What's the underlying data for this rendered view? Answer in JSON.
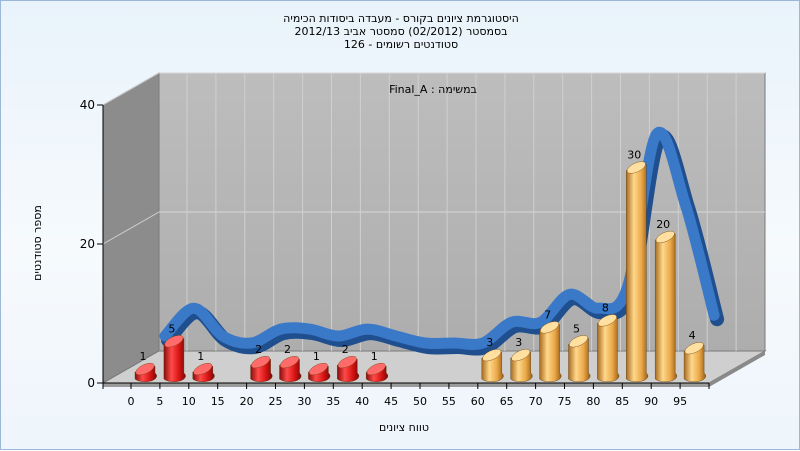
{
  "chart_data": {
    "type": "bar",
    "title_lines": [
      "היסטוגרמת ציונים בקורס - מעבדה ביסודות הכימיה",
      "בסמסטר  (02/2012)  סמסטר אביב 2012/13",
      "סטודנטים רשומים - 126"
    ],
    "series_label": "Final_A : במשימה",
    "xlabel": "טווח ציונים",
    "ylabel": "מספר סטודנטים",
    "ylim": [
      0,
      40
    ],
    "yticks": [
      0,
      20,
      40
    ],
    "categories": [
      "0",
      "5",
      "10",
      "15",
      "20",
      "25",
      "30",
      "35",
      "40",
      "45",
      "50",
      "55",
      "60",
      "65",
      "70",
      "75",
      "80",
      "85",
      "90",
      "95"
    ],
    "values": [
      1,
      5,
      1,
      0,
      2,
      2,
      1,
      2,
      1,
      0,
      0,
      0,
      3,
      3,
      7,
      5,
      8,
      30,
      20,
      4
    ],
    "data_labels": [
      "1",
      "5",
      "1",
      "",
      "2",
      "2",
      "1",
      "2",
      "1",
      "",
      "",
      "",
      "3",
      "3",
      "7",
      "5",
      "8",
      "30",
      "20",
      "4"
    ],
    "grid": true,
    "curve_3d": true,
    "colors": {
      "fail_bar": "#e01818",
      "pass_bar": "#f0b050",
      "curve": "#3a78c8",
      "curve_low": "#707070",
      "back_wall": "#b9b9b9",
      "side_wall": "#8a8a8a",
      "floor": "#c8c8c8"
    }
  }
}
